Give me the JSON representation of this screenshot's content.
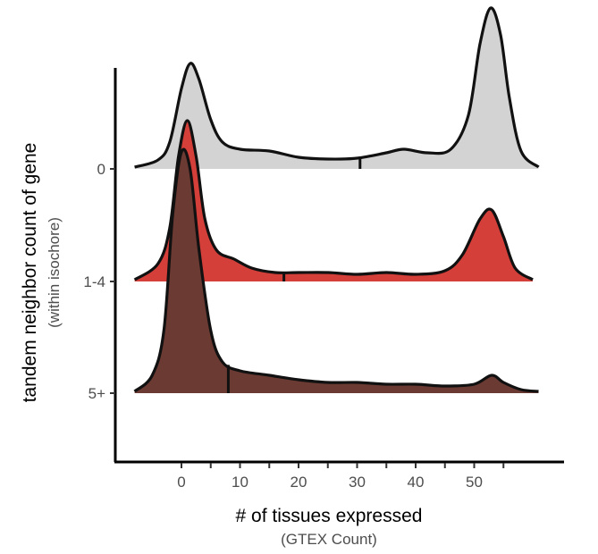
{
  "chart_data": {
    "type": "ridgeline",
    "xlabel": "# of tissues expressed",
    "xlabel_sub": "(GTEX Count)",
    "ylabel": "tandem neighbor count of gene",
    "ylabel_sub": "(within isochore)",
    "x_ticks": [
      0,
      10,
      20,
      30,
      40,
      50
    ],
    "x_minor_ticks": [
      5,
      15,
      25,
      35,
      45,
      55
    ],
    "xlim": [
      -9,
      62
    ],
    "grid": false,
    "legend": "none",
    "series": [
      {
        "name": "0",
        "color": "#d3d3d3",
        "median": 30.5,
        "density": [
          [
            -8,
            0.002
          ],
          [
            -4,
            0.01
          ],
          [
            -2,
            0.03
          ],
          [
            0,
            0.09
          ],
          [
            1.5,
            0.118
          ],
          [
            3,
            0.1
          ],
          [
            5,
            0.055
          ],
          [
            7,
            0.03
          ],
          [
            10,
            0.022
          ],
          [
            15,
            0.02
          ],
          [
            20,
            0.013
          ],
          [
            25,
            0.011
          ],
          [
            30,
            0.012
          ],
          [
            35,
            0.018
          ],
          [
            38,
            0.022
          ],
          [
            42,
            0.018
          ],
          [
            46,
            0.022
          ],
          [
            49,
            0.06
          ],
          [
            51,
            0.14
          ],
          [
            52.8,
            0.18
          ],
          [
            54.5,
            0.15
          ],
          [
            56,
            0.08
          ],
          [
            58,
            0.02
          ],
          [
            61,
            0.002
          ]
        ]
      },
      {
        "name": "1-4",
        "color": "#d43f3a",
        "median": 17.5,
        "density": [
          [
            -8,
            0.002
          ],
          [
            -4,
            0.02
          ],
          [
            -2,
            0.06
          ],
          [
            -0.5,
            0.14
          ],
          [
            1,
            0.18
          ],
          [
            2.5,
            0.14
          ],
          [
            4,
            0.07
          ],
          [
            6,
            0.035
          ],
          [
            9,
            0.025
          ],
          [
            12,
            0.015
          ],
          [
            16,
            0.01
          ],
          [
            20,
            0.01
          ],
          [
            25,
            0.01
          ],
          [
            30,
            0.008
          ],
          [
            35,
            0.01
          ],
          [
            40,
            0.008
          ],
          [
            45,
            0.012
          ],
          [
            48,
            0.03
          ],
          [
            51,
            0.07
          ],
          [
            53,
            0.08
          ],
          [
            55,
            0.05
          ],
          [
            57,
            0.015
          ],
          [
            60,
            0.002
          ]
        ]
      },
      {
        "name": "5+",
        "color": "#6b3a33",
        "median": 8,
        "density": [
          [
            -8,
            0.002
          ],
          [
            -5,
            0.02
          ],
          [
            -3,
            0.07
          ],
          [
            -1.5,
            0.2
          ],
          [
            0,
            0.27
          ],
          [
            1.5,
            0.25
          ],
          [
            3,
            0.16
          ],
          [
            5,
            0.07
          ],
          [
            7,
            0.035
          ],
          [
            10,
            0.025
          ],
          [
            15,
            0.02
          ],
          [
            20,
            0.015
          ],
          [
            25,
            0.012
          ],
          [
            30,
            0.012
          ],
          [
            35,
            0.01
          ],
          [
            40,
            0.01
          ],
          [
            45,
            0.008
          ],
          [
            50,
            0.01
          ],
          [
            53,
            0.02
          ],
          [
            55,
            0.012
          ],
          [
            58,
            0.004
          ],
          [
            61,
            0.002
          ]
        ]
      }
    ]
  }
}
